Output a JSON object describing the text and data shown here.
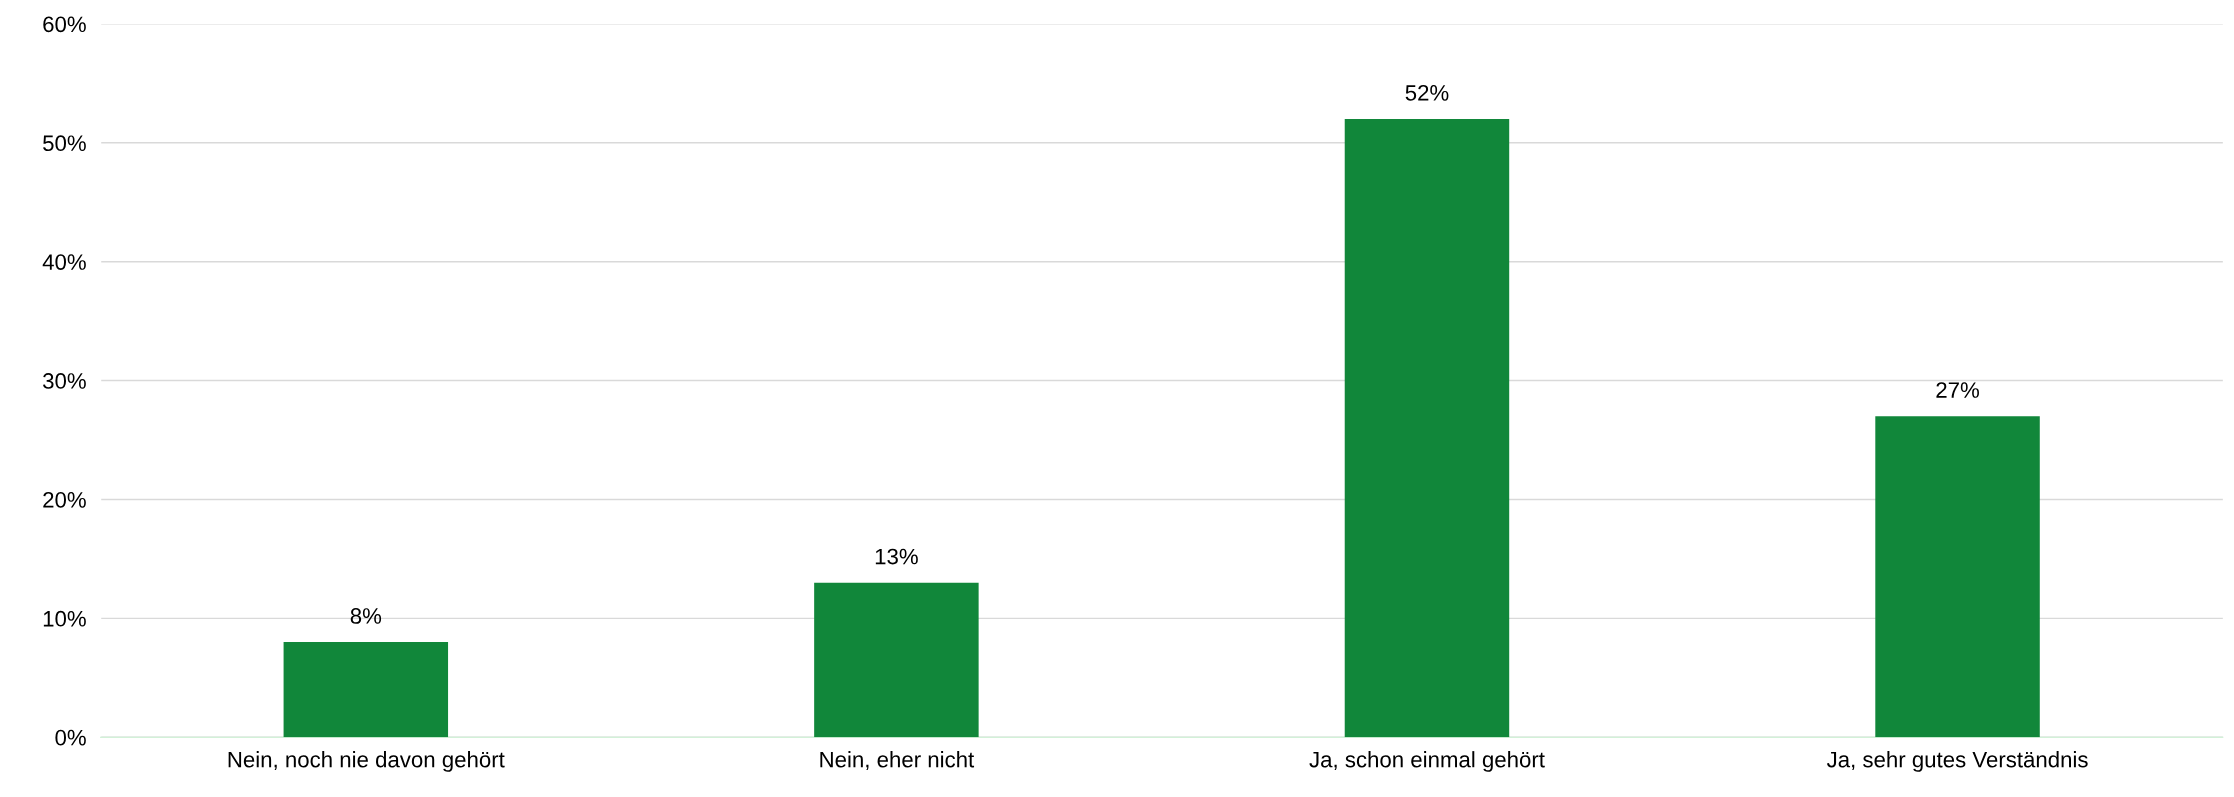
{
  "chart_data": {
    "type": "bar",
    "categories": [
      "Nein, noch nie davon gehört",
      "Nein, eher nicht",
      "Ja, schon einmal gehört",
      "Ja, sehr gutes Verständnis"
    ],
    "values": [
      8,
      13,
      52,
      27
    ],
    "value_labels": [
      "8%",
      "13%",
      "52%",
      "27%"
    ],
    "color": "#11873a",
    "ylim": [
      0,
      60
    ],
    "yticks": [
      {
        "value": 0,
        "label": "0%"
      },
      {
        "value": 10,
        "label": "10%"
      },
      {
        "value": 20,
        "label": "20%"
      },
      {
        "value": 30,
        "label": "30%"
      },
      {
        "value": 40,
        "label": "40%"
      },
      {
        "value": 50,
        "label": "50%"
      },
      {
        "value": 60,
        "label": "60%"
      }
    ],
    "grid": "y",
    "legend": false
  }
}
